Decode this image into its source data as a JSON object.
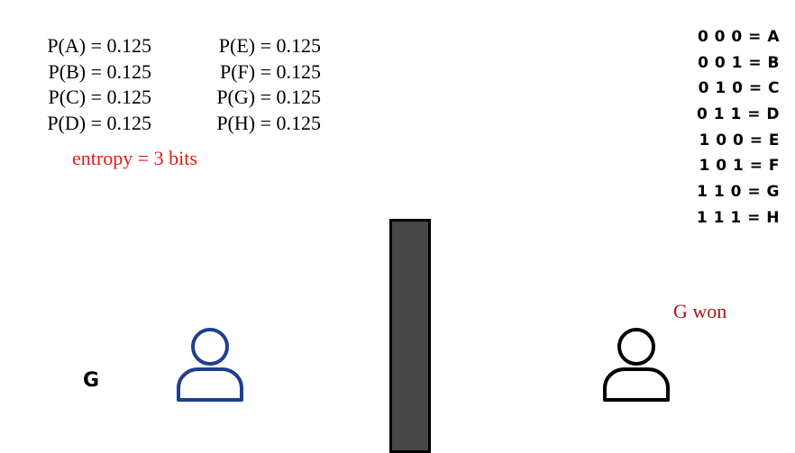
{
  "probabilities": {
    "left": [
      "P(A) = 0.125",
      "P(B) = 0.125",
      "P(C) = 0.125",
      "P(D) = 0.125"
    ],
    "right": [
      "P(E) = 0.125",
      "P(F) = 0.125",
      "P(G) = 0.125",
      "P(H) = 0.125"
    ]
  },
  "entropy_label": "entropy = 3 bits",
  "codes": [
    "0 0 0 = A",
    "0 0 1 = B",
    "0 1 0 = C",
    "0 1 1 = D",
    "1 0 0 = E",
    "1 0 1 = F",
    "1 1 0 = G",
    "1 1 1 = H"
  ],
  "sender": {
    "message": "G",
    "icon": "person-icon",
    "color": "#1f3f8f"
  },
  "receiver": {
    "message": "G won",
    "icon": "person-icon",
    "color": "#000000"
  },
  "colors": {
    "entropy": "#e31b1b",
    "receiver_message": "#a01818",
    "wall": "#474747"
  }
}
